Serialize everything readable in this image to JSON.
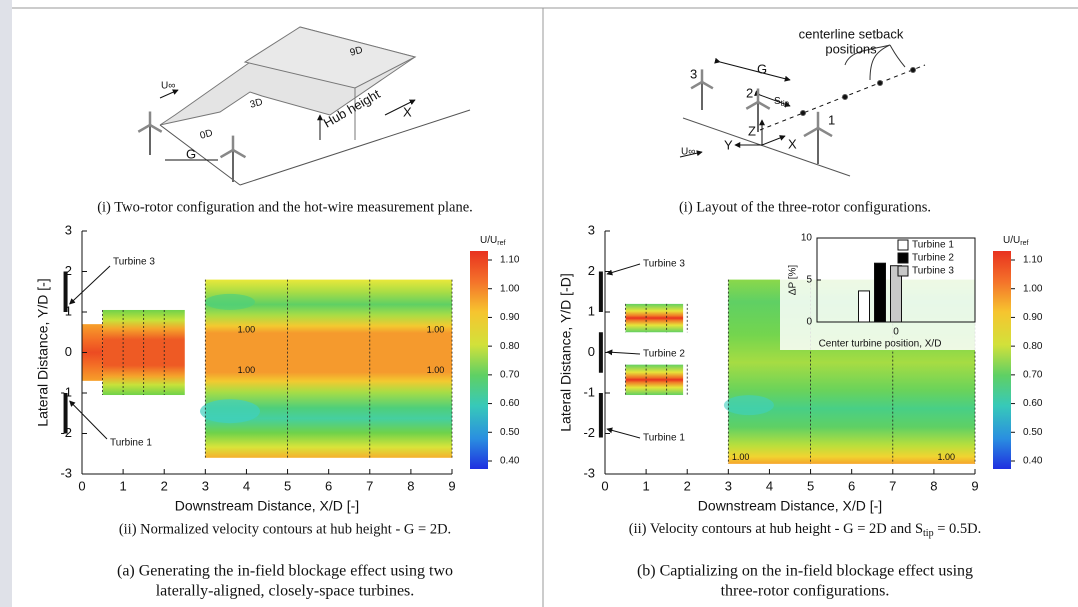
{
  "panels": [
    {
      "schematic": {
        "u_inf": "U∞",
        "spacing_far": "9D",
        "spacing_mid": "3D",
        "spacing_near": "0D",
        "gap": "G",
        "hub_height": "Hub height",
        "x_axis": "X"
      },
      "schematic_caption": "(i) Two-rotor configuration and the hot-wire measurement plane.",
      "contour": {
        "xlabel": "Downstream Distance, X/D [-]",
        "ylabel": "Lateral Distance, Y/D [-]",
        "xlim": [
          0,
          9
        ],
        "xticks": [
          0,
          1,
          2,
          3,
          4,
          5,
          6,
          7,
          8,
          9
        ],
        "ylim": [
          -3,
          3
        ],
        "yticks": [
          -3,
          -2,
          -1,
          0,
          1,
          2,
          3
        ],
        "turbine_labels": [
          "Turbine 3",
          "Turbine 1"
        ],
        "contour_labels": [
          "1.00",
          "1.00",
          "1.00",
          "1.00"
        ],
        "colorbar": {
          "title": "U/U",
          "title_sub": "ref",
          "ticks": [
            {
              "value": 1.1,
              "label": "1.10"
            },
            {
              "value": 1.0,
              "label": "1.00"
            },
            {
              "value": 0.9,
              "label": "0.90"
            },
            {
              "value": 0.8,
              "label": "0.80"
            },
            {
              "value": 0.7,
              "label": "0.70"
            },
            {
              "value": 0.6,
              "label": "0.60"
            },
            {
              "value": 0.5,
              "label": "0.50"
            },
            {
              "value": 0.4,
              "label": "0.40"
            }
          ]
        }
      },
      "contour_caption": [
        "(ii) Normalized velocity contours at hub height - G = 2D."
      ],
      "caption_lines": [
        "(a) Generating the in-field blockage effect using two",
        "laterally-aligned, closely-space turbines."
      ]
    },
    {
      "schematic": {
        "callout": [
          "centerline setback",
          "positions"
        ],
        "gap": "G",
        "s_tip": {
          "main": "S",
          "sub": "tip"
        },
        "turbines": [
          "3",
          "2",
          "1"
        ],
        "z": "Z",
        "y": "Y",
        "x": "X",
        "u_inf": "U∞"
      },
      "schematic_caption": "(i) Layout of the three-rotor configurations.",
      "contour": {
        "xlabel": "Downstream Distance, X/D [-]",
        "ylabel": "Lateral Distance, Y/D [-D]",
        "xlim": [
          0,
          9
        ],
        "xticks": [
          0,
          1,
          2,
          3,
          4,
          5,
          6,
          7,
          8,
          9
        ],
        "ylim": [
          -3,
          3
        ],
        "yticks": [
          -3,
          -2,
          -1,
          0,
          1,
          2,
          3
        ],
        "turbine_labels": [
          "Turbine 3",
          "Turbine 2",
          "Turbine 1"
        ],
        "contour_labels": [
          "1.00",
          "1.00"
        ],
        "colorbar": {
          "title": "U/U",
          "title_sub": "ref",
          "ticks": [
            {
              "value": 1.1,
              "label": "1.10"
            },
            {
              "value": 1.0,
              "label": "1.00"
            },
            {
              "value": 0.9,
              "label": "0.90"
            },
            {
              "value": 0.8,
              "label": "0.80"
            },
            {
              "value": 0.7,
              "label": "0.70"
            },
            {
              "value": 0.6,
              "label": "0.60"
            },
            {
              "value": 0.5,
              "label": "0.50"
            },
            {
              "value": 0.4,
              "label": "0.40"
            }
          ]
        }
      },
      "contour_caption": [
        "(ii) Velocity contours at hub height - G = 2D and S",
        "tip",
        " = 0.5D."
      ],
      "caption_lines": [
        "(b) Captializing on the in-field blockage effect using",
        "three-rotor configurations."
      ]
    }
  ],
  "chart_data": {
    "type": "bar",
    "xlabel": "Center turbine position, X/D",
    "ylabel": "ΔP [%]",
    "categories": [
      "0"
    ],
    "series": [
      {
        "name": "Turbine 1",
        "color": "#ffffff",
        "values": [
          3.7
        ]
      },
      {
        "name": "Turbine 2",
        "color": "#000000",
        "values": [
          7.0
        ]
      },
      {
        "name": "Turbine 3",
        "color": "#c8c8c8",
        "values": [
          6.7
        ]
      }
    ],
    "ylim": [
      0,
      10
    ],
    "yticks": [
      0,
      5,
      10
    ]
  }
}
